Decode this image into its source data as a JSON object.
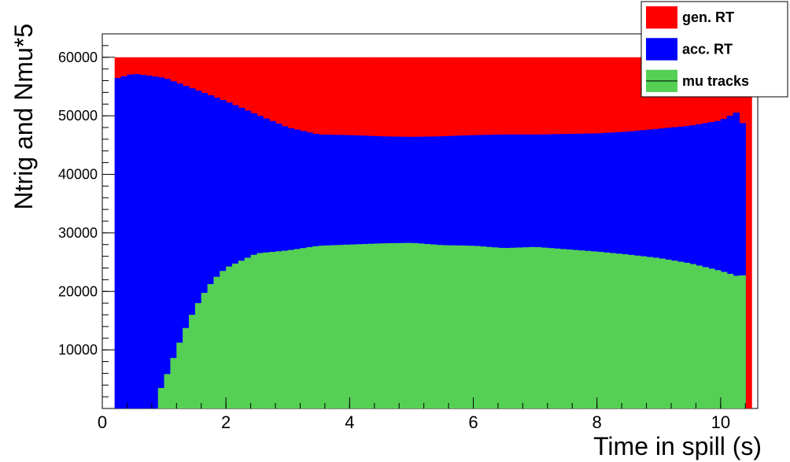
{
  "chart_data": {
    "type": "area",
    "title": "",
    "xlabel": "Time in spill (s)",
    "ylabel": "Ntrig and Nmu*5",
    "xlim": [
      0,
      10.6
    ],
    "ylim": [
      0,
      64000
    ],
    "xticks": [
      "0",
      "2",
      "4",
      "6",
      "8",
      "10"
    ],
    "yticks": [
      "10000",
      "20000",
      "30000",
      "40000",
      "50000",
      "60000"
    ],
    "legend_position": "top-right",
    "grid": false,
    "colors": {
      "gen_rt": "#ff0000",
      "acc_rt": "#0000ff",
      "mu_tracks": "#55d055"
    },
    "series": [
      {
        "name": "gen. RT",
        "x": [
          0.2,
          10.4,
          10.5
        ],
        "values": [
          60000,
          60000,
          60000
        ]
      },
      {
        "name": "acc. RT",
        "x": [
          0.2,
          0.5,
          1.0,
          1.5,
          2.0,
          2.5,
          3.0,
          3.5,
          4.0,
          4.5,
          5.0,
          5.5,
          6.0,
          6.5,
          7.0,
          7.5,
          8.0,
          8.5,
          9.0,
          9.5,
          10.0,
          10.3,
          10.4
        ],
        "values": [
          56300,
          57200,
          56500,
          54500,
          52500,
          50200,
          48000,
          46800,
          46700,
          46500,
          46400,
          46500,
          46700,
          46800,
          46800,
          46900,
          47000,
          47300,
          47800,
          48300,
          49200,
          50800,
          46700
        ]
      },
      {
        "name": "mu tracks",
        "x": [
          0.9,
          1.0,
          1.2,
          1.4,
          1.6,
          1.8,
          2.0,
          2.5,
          3.0,
          3.5,
          4.0,
          4.5,
          5.0,
          5.5,
          6.0,
          6.5,
          7.0,
          7.5,
          8.0,
          8.5,
          9.0,
          9.5,
          10.0,
          10.3,
          10.4
        ],
        "values": [
          2500,
          4500,
          10000,
          15000,
          19000,
          22000,
          24000,
          26500,
          27000,
          27800,
          28000,
          28200,
          28300,
          27900,
          27800,
          27400,
          27600,
          27200,
          26800,
          26300,
          25700,
          24800,
          23500,
          22500,
          23000
        ]
      }
    ]
  }
}
